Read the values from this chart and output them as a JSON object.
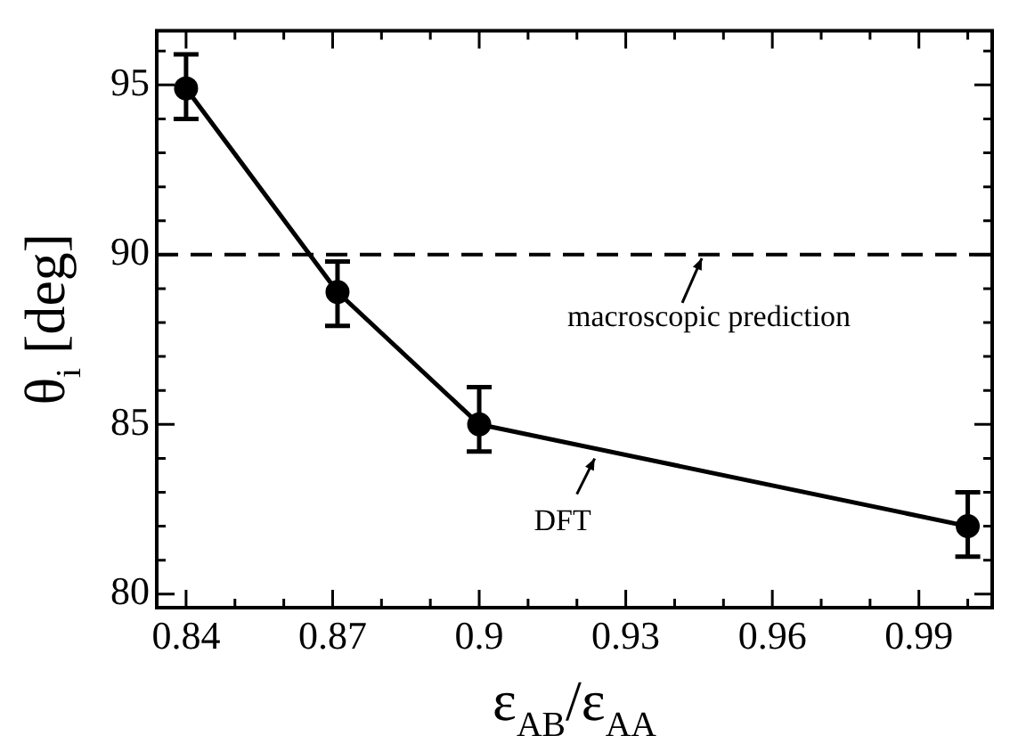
{
  "chart_data": {
    "type": "line",
    "xlabel": "ε$_{AB}$/ε$_{AA}$",
    "ylabel": "θ$_{i}$ [deg]",
    "x": [
      0.84,
      0.871,
      0.9,
      1.0
    ],
    "series": [
      {
        "color": "#000000",
        "values": [
          94.9,
          88.9,
          85.0,
          82.0
        ],
        "errors": [
          [
            94.0,
            95.9
          ],
          [
            87.9,
            89.8
          ],
          [
            84.2,
            86.1
          ],
          [
            81.1,
            83.0
          ]
        ]
      }
    ],
    "xlim": [
      0.834,
      1.005
    ],
    "ylim": [
      79.6,
      96.6
    ],
    "xticks": [
      0.84,
      {
        "value": 0.85,
        "label": null
      },
      {
        "value": 0.86,
        "label": null
      },
      0.87,
      {
        "value": 0.88,
        "label": null
      },
      {
        "value": 0.89,
        "label": null
      },
      0.9,
      {
        "value": 0.91,
        "label": null
      },
      {
        "value": 0.92,
        "label": null
      },
      0.93,
      {
        "value": 0.94,
        "label": null
      },
      {
        "value": 0.95,
        "label": null
      },
      0.96,
      {
        "value": 0.97,
        "label": null
      },
      {
        "value": 0.98,
        "label": null
      },
      0.99,
      {
        "value": 1.0,
        "label": null
      }
    ],
    "yticks": [
      80,
      {
        "value": 81,
        "label": null
      },
      {
        "value": 82,
        "label": null
      },
      {
        "value": 83,
        "label": null
      },
      {
        "value": 84,
        "label": null
      },
      85,
      {
        "value": 86,
        "label": null
      },
      {
        "value": 87,
        "label": null
      },
      {
        "value": 88,
        "label": null
      },
      {
        "value": 89,
        "label": null
      },
      90,
      {
        "value": 91,
        "label": null
      },
      {
        "value": 92,
        "label": null
      },
      {
        "value": 93,
        "label": null
      },
      {
        "value": 94,
        "label": null
      },
      95,
      {
        "value": 96,
        "label": null
      }
    ],
    "ref_lines": [
      {
        "axis": "y",
        "value": 90,
        "label": "macroscopic prediction",
        "color": "#000000",
        "line_style": "dashed"
      }
    ],
    "annotations": [
      {
        "text": "DFT",
        "x": 0.924,
        "y": 84.1
      }
    ],
    "marker": "circle",
    "line_style": "solid",
    "grid": false
  }
}
